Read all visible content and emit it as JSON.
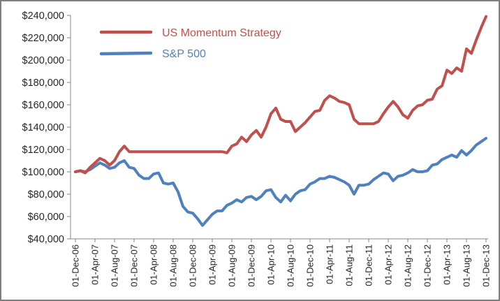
{
  "chart_data": {
    "type": "line",
    "title": "",
    "xlabel": "",
    "ylabel": "",
    "ylim": [
      40000,
      240000
    ],
    "yticks": [
      40000,
      60000,
      80000,
      100000,
      120000,
      140000,
      160000,
      180000,
      200000,
      220000,
      240000
    ],
    "ytick_labels": [
      "$40,000",
      "$60,000",
      "$80,000",
      "$100,000",
      "$120,000",
      "$140,000",
      "$160,000",
      "$180,000",
      "$200,000",
      "$220,000",
      "$240,000"
    ],
    "xtick_labels": [
      "01-Dec-06",
      "01-Apr-07",
      "01-Aug-07",
      "01-Dec-07",
      "01-Apr-08",
      "01-Aug-08",
      "01-Dec-08",
      "01-Apr-09",
      "01-Aug-09",
      "01-Dec-09",
      "01-Apr-10",
      "01-Aug-10",
      "01-Dec-10",
      "01-Apr-11",
      "01-Aug-11",
      "01-Dec-11",
      "01-Apr-12",
      "01-Aug-12",
      "01-Dec-12",
      "01-Apr-13",
      "01-Aug-13",
      "01-Dec-13"
    ],
    "x": [
      "Dec-06",
      "Jan-07",
      "Feb-07",
      "Mar-07",
      "Apr-07",
      "May-07",
      "Jun-07",
      "Jul-07",
      "Aug-07",
      "Sep-07",
      "Oct-07",
      "Nov-07",
      "Dec-07",
      "Jan-08",
      "Feb-08",
      "Mar-08",
      "Apr-08",
      "May-08",
      "Jun-08",
      "Jul-08",
      "Aug-08",
      "Sep-08",
      "Oct-08",
      "Nov-08",
      "Dec-08",
      "Jan-09",
      "Feb-09",
      "Mar-09",
      "Apr-09",
      "May-09",
      "Jun-09",
      "Jul-09",
      "Aug-09",
      "Sep-09",
      "Oct-09",
      "Nov-09",
      "Dec-09",
      "Jan-10",
      "Feb-10",
      "Mar-10",
      "Apr-10",
      "May-10",
      "Jun-10",
      "Jul-10",
      "Aug-10",
      "Sep-10",
      "Oct-10",
      "Nov-10",
      "Dec-10",
      "Jan-11",
      "Feb-11",
      "Mar-11",
      "Apr-11",
      "May-11",
      "Jun-11",
      "Jul-11",
      "Aug-11",
      "Sep-11",
      "Oct-11",
      "Nov-11",
      "Dec-11",
      "Jan-12",
      "Feb-12",
      "Mar-12",
      "Apr-12",
      "May-12",
      "Jun-12",
      "Jul-12",
      "Aug-12",
      "Sep-12",
      "Oct-12",
      "Nov-12",
      "Dec-12",
      "Jan-13",
      "Feb-13",
      "Mar-13",
      "Apr-13",
      "May-13",
      "Jun-13",
      "Jul-13",
      "Aug-13",
      "Sep-13",
      "Oct-13",
      "Nov-13",
      "Dec-13"
    ],
    "grid": false,
    "legend": "top-left",
    "series": [
      {
        "name": "US Momentum Strategy",
        "color": "#c0504d",
        "values": [
          100000,
          101000,
          99000,
          104000,
          108000,
          112000,
          110000,
          106000,
          110000,
          118000,
          123000,
          118000,
          118000,
          118000,
          118000,
          118000,
          118000,
          118000,
          118000,
          118000,
          118000,
          118000,
          118000,
          118000,
          118000,
          118000,
          118000,
          118000,
          118000,
          118000,
          118000,
          117000,
          123000,
          125000,
          131000,
          127000,
          133000,
          137000,
          131000,
          140000,
          152000,
          157000,
          147000,
          145000,
          145000,
          136000,
          140000,
          144000,
          149000,
          154000,
          155000,
          164000,
          168000,
          166000,
          163000,
          162000,
          160000,
          147000,
          143000,
          143000,
          143000,
          143000,
          145000,
          152000,
          158000,
          163000,
          158000,
          151000,
          148000,
          155000,
          159000,
          160000,
          164000,
          165000,
          174000,
          177000,
          191000,
          188000,
          193000,
          190000,
          210000,
          206000,
          218000,
          229000,
          239000
        ]
      },
      {
        "name": "S&P 500",
        "color": "#4f81bd",
        "values": [
          100000,
          101000,
          100000,
          102000,
          105000,
          108000,
          106000,
          103000,
          104000,
          108000,
          110000,
          104000,
          103000,
          97000,
          94000,
          94000,
          98000,
          99000,
          90000,
          89000,
          90000,
          82000,
          69000,
          64000,
          63000,
          58000,
          52000,
          57000,
          62000,
          65000,
          65000,
          70000,
          72000,
          75000,
          73000,
          77000,
          78000,
          75000,
          78000,
          83000,
          84000,
          77000,
          73000,
          79000,
          74000,
          80000,
          83000,
          84000,
          89000,
          91000,
          94000,
          94000,
          96000,
          95000,
          93000,
          91000,
          88000,
          80000,
          88000,
          88000,
          89000,
          93000,
          96000,
          99000,
          98000,
          92000,
          96000,
          97000,
          99000,
          102000,
          100000,
          100000,
          101000,
          106000,
          107000,
          111000,
          113000,
          115000,
          113000,
          119000,
          115000,
          119000,
          124000,
          127000,
          130000
        ]
      }
    ]
  }
}
